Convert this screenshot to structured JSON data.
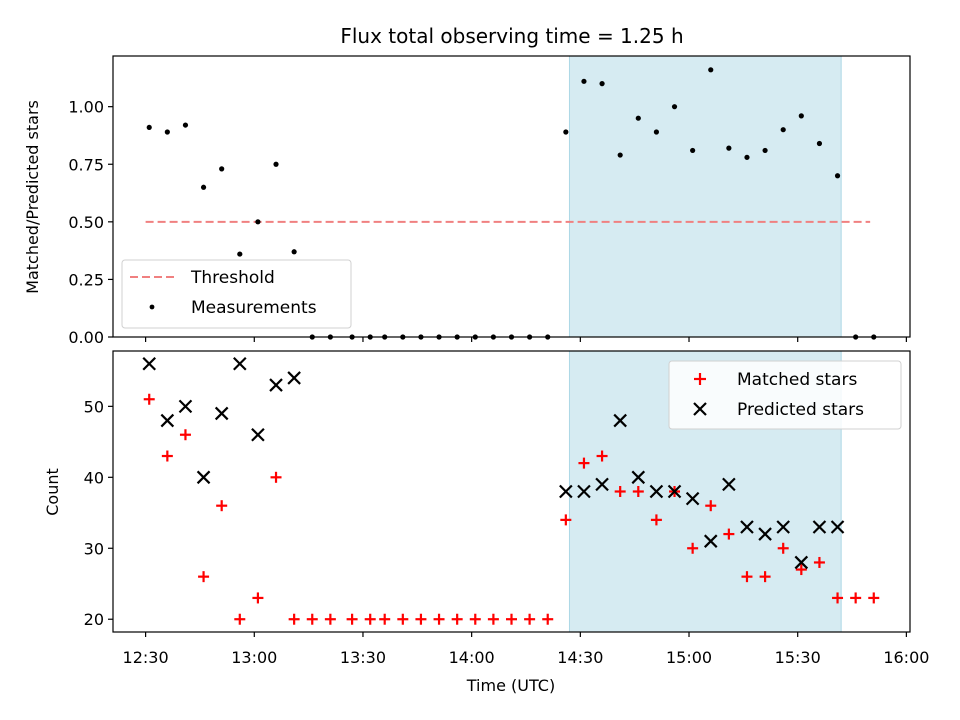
{
  "chart_data": [
    {
      "type": "scatter",
      "title": "Flux total observing time = 1.25 h",
      "ylabel": "Matched/Predicted stars",
      "xlabel": "",
      "ylim": [
        0,
        1.22
      ],
      "yticks": [
        0.0,
        0.25,
        0.5,
        0.75,
        1.0
      ],
      "ytick_labels": [
        "0.00",
        "0.25",
        "0.50",
        "0.75",
        "1.00"
      ],
      "shaded_span": [
        "14:27",
        "15:42"
      ],
      "threshold": {
        "name": "Threshold",
        "value": 0.5,
        "x_range": [
          "12:30",
          "15:50"
        ],
        "color": "#f08080"
      },
      "legend": {
        "position": "lower-left",
        "entries": [
          "Threshold",
          "Measurements"
        ]
      },
      "series": [
        {
          "name": "Measurements",
          "color": "#000000",
          "marker": "dot",
          "x": [
            "12:31",
            "12:36",
            "12:41",
            "12:46",
            "12:51",
            "12:56",
            "13:01",
            "13:06",
            "13:11",
            "13:16",
            "13:21",
            "13:27",
            "13:32",
            "13:36",
            "13:41",
            "13:46",
            "13:51",
            "13:56",
            "14:01",
            "14:06",
            "14:11",
            "14:16",
            "14:21",
            "14:26",
            "14:31",
            "14:36",
            "14:41",
            "14:46",
            "14:51",
            "14:56",
            "15:01",
            "15:06",
            "15:11",
            "15:16",
            "15:21",
            "15:26",
            "15:31",
            "15:36",
            "15:41",
            "15:46",
            "15:51"
          ],
          "y": [
            0.91,
            0.89,
            0.92,
            0.65,
            0.73,
            0.36,
            0.5,
            0.75,
            0.37,
            0.0,
            0.0,
            0.0,
            0.0,
            0.0,
            0.0,
            0.0,
            0.0,
            0.0,
            0.0,
            0.0,
            0.0,
            0.0,
            0.0,
            0.89,
            1.11,
            1.1,
            0.79,
            0.95,
            0.89,
            1.0,
            0.81,
            1.16,
            0.82,
            0.78,
            0.81,
            0.9,
            0.96,
            0.84,
            0.7,
            0.0,
            0.0
          ]
        }
      ]
    },
    {
      "type": "scatter",
      "title": "",
      "ylabel": "Count",
      "xlabel": "Time (UTC)",
      "ylim": [
        18.2,
        57.8
      ],
      "yticks": [
        20,
        30,
        40,
        50
      ],
      "ytick_labels": [
        "20",
        "30",
        "40",
        "50"
      ],
      "xlim": [
        "12:21",
        "16:01"
      ],
      "xticks": [
        "12:30",
        "13:00",
        "13:30",
        "14:00",
        "14:30",
        "15:00",
        "15:30",
        "16:00"
      ],
      "shaded_span": [
        "14:27",
        "15:42"
      ],
      "legend": {
        "position": "top-right",
        "entries": [
          "Matched stars",
          "Predicted stars"
        ]
      },
      "series": [
        {
          "name": "Matched stars",
          "color": "#ff0000",
          "marker": "plus",
          "x": [
            "12:31",
            "12:36",
            "12:41",
            "12:46",
            "12:51",
            "12:56",
            "13:01",
            "13:06",
            "13:11",
            "13:16",
            "13:21",
            "13:27",
            "13:32",
            "13:36",
            "13:41",
            "13:46",
            "13:51",
            "13:56",
            "14:01",
            "14:06",
            "14:11",
            "14:16",
            "14:21",
            "14:26",
            "14:31",
            "14:36",
            "14:41",
            "14:46",
            "14:51",
            "14:56",
            "15:01",
            "15:06",
            "15:11",
            "15:16",
            "15:21",
            "15:26",
            "15:31",
            "15:36",
            "15:41",
            "15:46",
            "15:51"
          ],
          "y": [
            51,
            43,
            46,
            26,
            36,
            20,
            23,
            40,
            20,
            20,
            20,
            20,
            20,
            20,
            20,
            20,
            20,
            20,
            20,
            20,
            20,
            20,
            20,
            34,
            42,
            43,
            38,
            38,
            34,
            38,
            30,
            36,
            32,
            26,
            26,
            30,
            27,
            28,
            23,
            23,
            23
          ]
        },
        {
          "name": "Predicted stars",
          "color": "#000000",
          "marker": "x",
          "x": [
            "12:31",
            "12:36",
            "12:41",
            "12:46",
            "12:51",
            "12:56",
            "13:01",
            "13:06",
            "13:11",
            "14:26",
            "14:31",
            "14:36",
            "14:41",
            "14:46",
            "14:51",
            "14:56",
            "15:01",
            "15:06",
            "15:11",
            "15:16",
            "15:21",
            "15:26",
            "15:31",
            "15:36",
            "15:41"
          ],
          "y": [
            56,
            48,
            50,
            40,
            49,
            56,
            46,
            53,
            54,
            38,
            38,
            39,
            48,
            40,
            38,
            38,
            37,
            31,
            39,
            33,
            32,
            33,
            28,
            33,
            33
          ]
        }
      ]
    }
  ]
}
